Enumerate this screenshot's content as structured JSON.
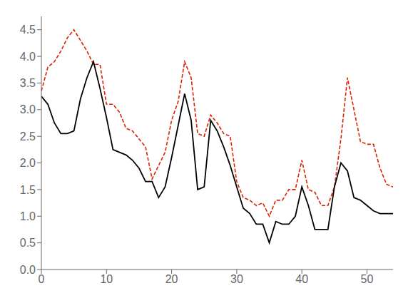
{
  "chart_data": {
    "type": "line",
    "x": [
      0,
      1,
      2,
      3,
      4,
      5,
      6,
      7,
      8,
      9,
      10,
      11,
      12,
      13,
      14,
      15,
      16,
      17,
      18,
      19,
      20,
      21,
      22,
      23,
      24,
      25,
      26,
      27,
      28,
      29,
      30,
      31,
      32,
      33,
      34,
      35,
      36,
      37,
      38,
      39,
      40,
      41,
      42,
      43,
      44,
      45,
      46,
      47,
      48,
      49,
      50,
      51,
      52,
      53,
      54
    ],
    "series": [
      {
        "color": "#000000",
        "line_style": "solid",
        "values": [
          3.25,
          3.1,
          2.75,
          2.55,
          2.55,
          2.6,
          3.2,
          3.6,
          3.9,
          3.4,
          2.85,
          2.25,
          2.2,
          2.15,
          2.05,
          1.9,
          1.65,
          1.65,
          1.35,
          1.55,
          2.1,
          2.7,
          3.3,
          2.8,
          1.5,
          1.55,
          2.8,
          2.6,
          2.3,
          1.95,
          1.55,
          1.15,
          1.05,
          0.85,
          0.85,
          0.5,
          0.9,
          0.85,
          0.85,
          1.0,
          1.55,
          1.2,
          0.75,
          0.75,
          0.75,
          1.55,
          2.0,
          1.85,
          1.35,
          1.3,
          1.2,
          1.1,
          1.05,
          1.05,
          1.05
        ]
      },
      {
        "color": "#dd2200",
        "line_style": "dashed",
        "values": [
          3.35,
          3.8,
          3.9,
          4.1,
          4.35,
          4.5,
          4.3,
          4.1,
          3.85,
          3.85,
          3.1,
          3.1,
          2.95,
          2.65,
          2.6,
          2.45,
          2.3,
          1.7,
          1.95,
          2.2,
          2.8,
          3.15,
          3.9,
          3.6,
          2.55,
          2.5,
          2.9,
          2.75,
          2.55,
          2.5,
          1.65,
          1.35,
          1.3,
          1.2,
          1.25,
          1.0,
          1.3,
          1.3,
          1.5,
          1.5,
          2.05,
          1.5,
          1.45,
          1.2,
          1.2,
          1.55,
          2.45,
          3.6,
          3.0,
          2.4,
          2.35,
          2.35,
          1.9,
          1.6,
          1.55
        ]
      }
    ],
    "xlim": [
      0,
      54
    ],
    "ylim": [
      0,
      4.75
    ],
    "xticks": [
      0,
      10,
      20,
      30,
      40,
      50
    ],
    "yticks": [
      {
        "value": 0,
        "label": "0.0"
      },
      0.5,
      {
        "value": 1,
        "label": "1.0"
      },
      1.5,
      {
        "value": 2,
        "label": "2.0"
      },
      2.5,
      {
        "value": 3,
        "label": "3.0"
      },
      3.5,
      {
        "value": 4,
        "label": "4.0"
      },
      4.5
    ],
    "grid": false
  }
}
